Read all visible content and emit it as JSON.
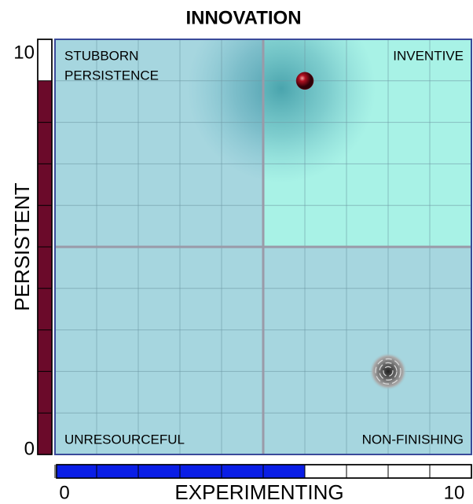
{
  "chart_data": {
    "type": "quadrant",
    "title": "INNOVATION",
    "x_label": "EXPERIMENTING",
    "y_label": "PERSISTENT",
    "xlim": [
      0,
      10
    ],
    "ylim": [
      0,
      10
    ],
    "xticks": [
      0,
      10
    ],
    "yticks": [
      0,
      10
    ],
    "xgrid": [
      0,
      1,
      2,
      3,
      4,
      5,
      6,
      7,
      8,
      9,
      10
    ],
    "ygrid": [
      0,
      1,
      2,
      3,
      4,
      5,
      6,
      7,
      8,
      9,
      10
    ],
    "quadrant_split": {
      "x": 5,
      "y": 5
    },
    "quadrant_labels": {
      "top_left": [
        "STUBBORN",
        "PERSISTENCE"
      ],
      "top_right": "INVENTIVE",
      "bottom_left": "UNRESOURCEFUL",
      "bottom_right": "NON-FINISHING"
    },
    "point": {
      "x": 6,
      "y": 9,
      "color": "#7a0a1a"
    },
    "target": {
      "x": 8,
      "y": 2
    },
    "x_bar_color": "#0a1ee6",
    "y_bar_color": "#6b0a2a",
    "quadrant_color": "#a6d6df",
    "highlight_color": "#a8f2e6"
  }
}
